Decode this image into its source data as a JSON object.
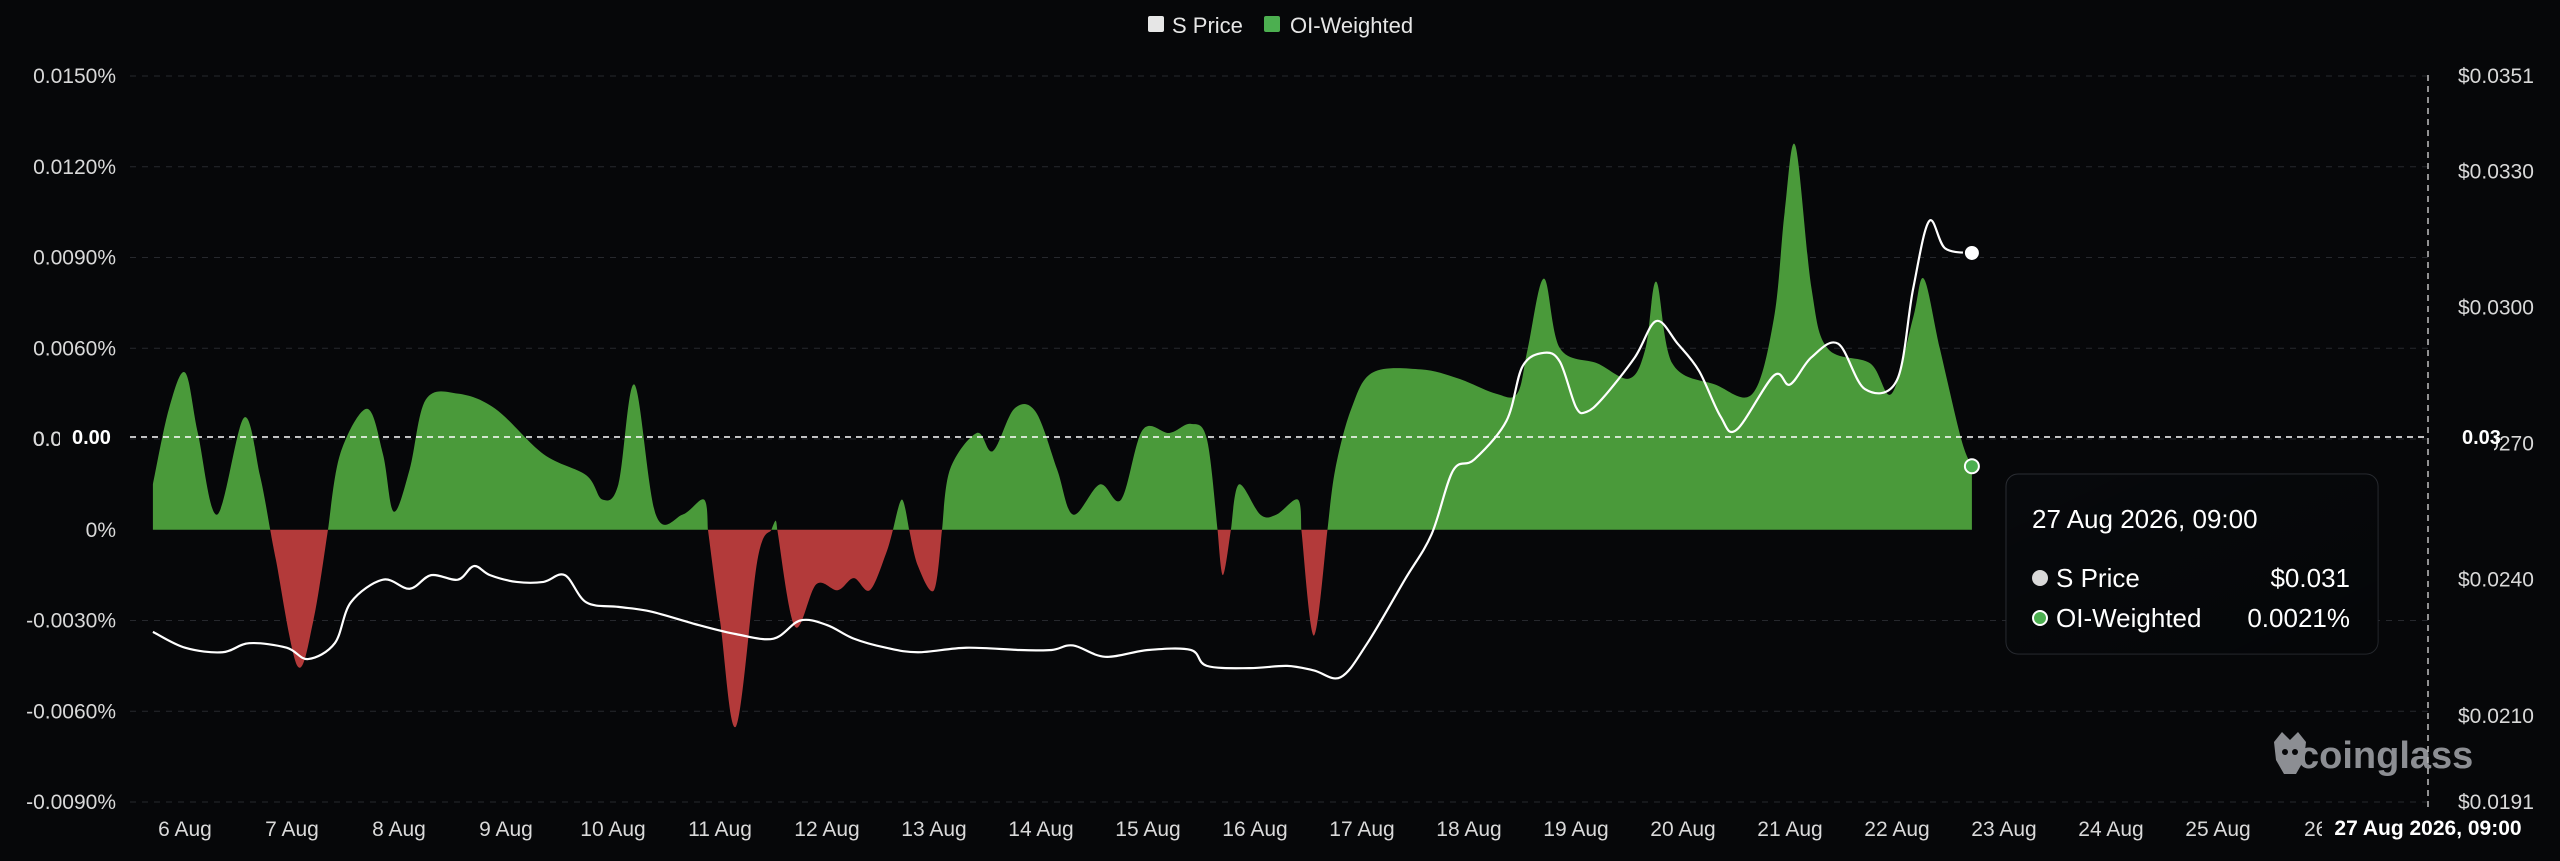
{
  "legend": {
    "price_label": "S Price",
    "oi_label": "OI-Weighted",
    "price_color": "#e6e6e6",
    "oi_color": "#4caf50"
  },
  "watermark": "coinglass",
  "tooltip": {
    "title": "27 Aug 2026, 09:00",
    "price_label": "S Price",
    "price_value": "$0.031",
    "oi_label": "OI-Weighted",
    "oi_value": "0.0021%"
  },
  "crosshair": {
    "x_label": "27 Aug 2026, 09:00",
    "left_zero_label": "0.00",
    "right_label": "0.03",
    "left_ghost": "0.0",
    "right_ghost": "70"
  },
  "chart_data": {
    "type": "area",
    "x_ticks": [
      "6 Aug",
      "7 Aug",
      "8 Aug",
      "9 Aug",
      "10 Aug",
      "11 Aug",
      "12 Aug",
      "13 Aug",
      "14 Aug",
      "15 Aug",
      "16 Aug",
      "17 Aug",
      "18 Aug",
      "19 Aug",
      "20 Aug",
      "21 Aug",
      "22 Aug",
      "23 Aug",
      "24 Aug",
      "25 Aug",
      "26 A"
    ],
    "y_left_ticks": [
      "0.0150%",
      "0.0120%",
      "0.0090%",
      "0.0060%",
      "0.0030%",
      "0%",
      "-0.0030%",
      "-0.0060%",
      "-0.0090%"
    ],
    "y_left_range": [
      -0.009,
      0.015
    ],
    "y_right_ticks": [
      "$0.0351",
      "$0.0330",
      "$0.0300",
      "$0.0270",
      "$0.0240",
      "$0.0210",
      "$0.0191"
    ],
    "y_right_range": [
      0.0191,
      0.0351
    ],
    "positive_color": "#4a9a3a",
    "negative_color": "#b33a3a",
    "price_line_color": "#ffffff",
    "x_start": "5.7 Aug",
    "series": [
      {
        "name": "OI-Weighted",
        "unit": "%",
        "points": [
          [
            5.7,
            0.0015
          ],
          [
            5.85,
            0.004
          ],
          [
            6.0,
            0.0052
          ],
          [
            6.12,
            0.0032
          ],
          [
            6.3,
            0.0005
          ],
          [
            6.55,
            0.0037
          ],
          [
            6.7,
            0.0018
          ],
          [
            6.85,
            -0.001
          ],
          [
            7.05,
            -0.0045
          ],
          [
            7.2,
            -0.003
          ],
          [
            7.45,
            0.0025
          ],
          [
            7.7,
            0.004
          ],
          [
            7.85,
            0.0025
          ],
          [
            7.95,
            0.0006
          ],
          [
            8.1,
            0.002
          ],
          [
            8.25,
            0.0043
          ],
          [
            8.55,
            0.0045
          ],
          [
            8.9,
            0.004
          ],
          [
            9.35,
            0.0025
          ],
          [
            9.75,
            0.0018
          ],
          [
            9.9,
            0.001
          ],
          [
            10.05,
            0.0015
          ],
          [
            10.2,
            0.0048
          ],
          [
            10.4,
            0.0005
          ],
          [
            10.65,
            0.0005
          ],
          [
            10.85,
            0.001
          ],
          [
            11.0,
            -0.003
          ],
          [
            11.15,
            -0.0065
          ],
          [
            11.35,
            -0.001
          ],
          [
            11.52,
            0.0003
          ],
          [
            11.7,
            -0.0032
          ],
          [
            11.9,
            -0.0018
          ],
          [
            12.1,
            -0.002
          ],
          [
            12.25,
            -0.0016
          ],
          [
            12.4,
            -0.002
          ],
          [
            12.55,
            -0.0008
          ],
          [
            12.7,
            0.001
          ],
          [
            12.85,
            -0.0012
          ],
          [
            13.0,
            -0.002
          ],
          [
            13.15,
            0.002
          ],
          [
            13.4,
            0.0032
          ],
          [
            13.55,
            0.0026
          ],
          [
            13.75,
            0.004
          ],
          [
            13.95,
            0.0039
          ],
          [
            14.15,
            0.002
          ],
          [
            14.3,
            0.0005
          ],
          [
            14.55,
            0.0015
          ],
          [
            14.75,
            0.001
          ],
          [
            14.95,
            0.0033
          ],
          [
            15.2,
            0.0032
          ],
          [
            15.4,
            0.0035
          ],
          [
            15.55,
            0.003
          ],
          [
            15.7,
            -0.0015
          ],
          [
            15.85,
            0.0015
          ],
          [
            16.05,
            0.0005
          ],
          [
            16.2,
            0.0005
          ],
          [
            16.4,
            0.001
          ],
          [
            16.55,
            -0.0035
          ],
          [
            16.75,
            0.002
          ],
          [
            16.9,
            0.004
          ],
          [
            17.1,
            0.0052
          ],
          [
            17.55,
            0.0053
          ],
          [
            17.9,
            0.005
          ],
          [
            18.25,
            0.0045
          ],
          [
            18.45,
            0.0045
          ],
          [
            18.55,
            0.006
          ],
          [
            18.7,
            0.0083
          ],
          [
            18.85,
            0.006
          ],
          [
            19.2,
            0.0055
          ],
          [
            19.5,
            0.005
          ],
          [
            19.65,
            0.006
          ],
          [
            19.75,
            0.0082
          ],
          [
            19.9,
            0.0055
          ],
          [
            20.3,
            0.0048
          ],
          [
            20.65,
            0.0045
          ],
          [
            20.85,
            0.007
          ],
          [
            20.95,
            0.0105
          ],
          [
            21.05,
            0.0127
          ],
          [
            21.2,
            0.008
          ],
          [
            21.35,
            0.006
          ],
          [
            21.75,
            0.0055
          ],
          [
            21.95,
            0.0045
          ],
          [
            22.15,
            0.007
          ],
          [
            22.25,
            0.0083
          ],
          [
            22.4,
            0.006
          ],
          [
            22.6,
            0.003
          ],
          [
            22.7,
            0.0021
          ]
        ]
      },
      {
        "name": "S Price",
        "unit": "$",
        "points": [
          [
            5.7,
            0.02285
          ],
          [
            6.0,
            0.0225
          ],
          [
            6.35,
            0.0224
          ],
          [
            6.6,
            0.0226
          ],
          [
            6.95,
            0.0225
          ],
          [
            7.15,
            0.02225
          ],
          [
            7.4,
            0.0226
          ],
          [
            7.55,
            0.0235
          ],
          [
            7.85,
            0.024
          ],
          [
            8.1,
            0.0238
          ],
          [
            8.3,
            0.0241
          ],
          [
            8.55,
            0.024
          ],
          [
            8.7,
            0.0243
          ],
          [
            8.85,
            0.0241
          ],
          [
            9.1,
            0.02395
          ],
          [
            9.35,
            0.02395
          ],
          [
            9.55,
            0.0241
          ],
          [
            9.75,
            0.0235
          ],
          [
            10.05,
            0.0234
          ],
          [
            10.35,
            0.0233
          ],
          [
            10.8,
            0.023
          ],
          [
            11.15,
            0.0228
          ],
          [
            11.5,
            0.0227
          ],
          [
            11.75,
            0.0231
          ],
          [
            12.0,
            0.023
          ],
          [
            12.25,
            0.0227
          ],
          [
            12.55,
            0.0225
          ],
          [
            12.85,
            0.0224
          ],
          [
            13.3,
            0.0225
          ],
          [
            13.8,
            0.02245
          ],
          [
            14.1,
            0.02245
          ],
          [
            14.3,
            0.02255
          ],
          [
            14.6,
            0.0223
          ],
          [
            15.0,
            0.02245
          ],
          [
            15.4,
            0.02245
          ],
          [
            15.55,
            0.0221
          ],
          [
            15.95,
            0.02205
          ],
          [
            16.3,
            0.0221
          ],
          [
            16.55,
            0.022
          ],
          [
            16.8,
            0.02185
          ],
          [
            17.05,
            0.0226
          ],
          [
            17.4,
            0.024
          ],
          [
            17.65,
            0.025
          ],
          [
            17.85,
            0.0264
          ],
          [
            18.05,
            0.02665
          ],
          [
            18.35,
            0.0275
          ],
          [
            18.5,
            0.0287
          ],
          [
            18.7,
            0.029
          ],
          [
            18.85,
            0.0288
          ],
          [
            19.0,
            0.0278
          ],
          [
            19.1,
            0.0277
          ],
          [
            19.25,
            0.028
          ],
          [
            19.55,
            0.0289
          ],
          [
            19.75,
            0.0297
          ],
          [
            19.95,
            0.0292
          ],
          [
            20.15,
            0.0286
          ],
          [
            20.35,
            0.0276
          ],
          [
            20.5,
            0.0273
          ],
          [
            20.85,
            0.0285
          ],
          [
            21.0,
            0.0283
          ],
          [
            21.2,
            0.0289
          ],
          [
            21.45,
            0.0292
          ],
          [
            21.7,
            0.0282
          ],
          [
            22.0,
            0.0284
          ],
          [
            22.15,
            0.0304
          ],
          [
            22.3,
            0.0319
          ],
          [
            22.45,
            0.0313
          ],
          [
            22.7,
            0.0312
          ]
        ]
      }
    ]
  }
}
